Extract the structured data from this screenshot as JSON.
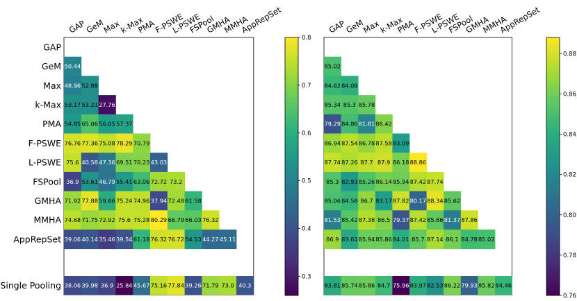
{
  "chart_data": [
    {
      "type": "heatmap",
      "title": "",
      "columns": [
        "GAP",
        "GeM",
        "Max",
        "k-Max",
        "PMA",
        "F-PSWE",
        "L-PSWE",
        "FSPool",
        "GMHA",
        "MMHA",
        "AppRepSet"
      ],
      "rows": [
        "GAP",
        "GeM",
        "Max",
        "k-Max",
        "PMA",
        "F-PSWE",
        "L-PSWE",
        "FSPool",
        "GMHA",
        "MMHA",
        "AppRepSet"
      ],
      "bottom_row_label": "Single Pooling",
      "values": [
        [],
        [
          "50.44"
        ],
        [
          "48.96",
          "52.88"
        ],
        [
          "53.17",
          "53.21",
          "27.76"
        ],
        [
          "54.85",
          "65.06",
          "56.05",
          "57.37"
        ],
        [
          "76.76",
          "77.36",
          "75.08",
          "78.29",
          "70.79"
        ],
        [
          "75.6",
          "40.58",
          "47.36",
          "69.51",
          "70.23",
          "43.03"
        ],
        [
          "36.9",
          "53.61",
          "46.79",
          "55.41",
          "63.06",
          "72.72",
          "73.2"
        ],
        [
          "71.92",
          "77.88",
          "59.66",
          "75.24",
          "74.96",
          "37.94",
          "72.48",
          "61.58"
        ],
        [
          "74.68",
          "71.75",
          "72.92",
          "75.6",
          "75.28",
          "80.29",
          "66.79",
          "66.03",
          "76.32"
        ],
        [
          "39.06",
          "40.14",
          "35.46",
          "39.54",
          "61.18",
          "76.32",
          "76.72",
          "54.53",
          "44.27",
          "45.11"
        ]
      ],
      "single_pooling": [
        "38.06",
        "39.98",
        "36.9",
        "25.84",
        "45.67",
        "75.16",
        "77.84",
        "39.26",
        "71.79",
        "73.0",
        "40.3"
      ],
      "colorbar": {
        "colormap": "viridis",
        "min": 0.26,
        "max": 0.8,
        "ticks": [
          "0.3",
          "0.4",
          "0.5",
          "0.6",
          "0.7",
          "0.8"
        ]
      }
    },
    {
      "type": "heatmap",
      "title": "",
      "columns": [
        "GAP",
        "GeM",
        "Max",
        "k-Max",
        "PMA",
        "F-PSWE",
        "L-PSWE",
        "FSPool",
        "GMHA",
        "MMHA",
        "AppRepSet"
      ],
      "rows": [
        "GAP",
        "GeM",
        "Max",
        "k-Max",
        "PMA",
        "F-PSWE",
        "L-PSWE",
        "FSPool",
        "GMHA",
        "MMHA",
        "AppRepSet"
      ],
      "bottom_row_label": "Single Pooling",
      "values": [
        [],
        [
          "85.02"
        ],
        [
          "84.62",
          "84.09"
        ],
        [
          "85.34",
          "85.3",
          "85.78"
        ],
        [
          "79.29",
          "84.86",
          "81.81",
          "86.42"
        ],
        [
          "86.94",
          "87.54",
          "86.78",
          "87.58",
          "83.09"
        ],
        [
          "87.74",
          "87.26",
          "87.7",
          "87.9",
          "86.18",
          "88.86"
        ],
        [
          "85.3",
          "82.93",
          "85.26",
          "86.14",
          "85.94",
          "87.42",
          "87.74"
        ],
        [
          "85.06",
          "84.58",
          "86.7",
          "83.17",
          "87.82",
          "80.17",
          "88.34",
          "85.62"
        ],
        [
          "81.53",
          "85.42",
          "87.38",
          "86.5",
          "79.37",
          "87.42",
          "85.66",
          "81.37",
          "87.86"
        ],
        [
          "86.9",
          "83.61",
          "85.94",
          "85.86",
          "84.01",
          "85.7",
          "87.14",
          "86.1",
          "84.78",
          "85.02"
        ]
      ],
      "single_pooling": [
        "83.81",
        "85.74",
        "85.86",
        "84.7",
        "75.96",
        "83.97",
        "82.53",
        "86.22",
        "79.93",
        "85.82",
        "84.46"
      ],
      "colorbar": {
        "colormap": "viridis",
        "min": 0.76,
        "max": 0.888,
        "ticks": [
          "0.76",
          "0.78",
          "0.80",
          "0.82",
          "0.84",
          "0.86",
          "0.88"
        ]
      }
    }
  ]
}
